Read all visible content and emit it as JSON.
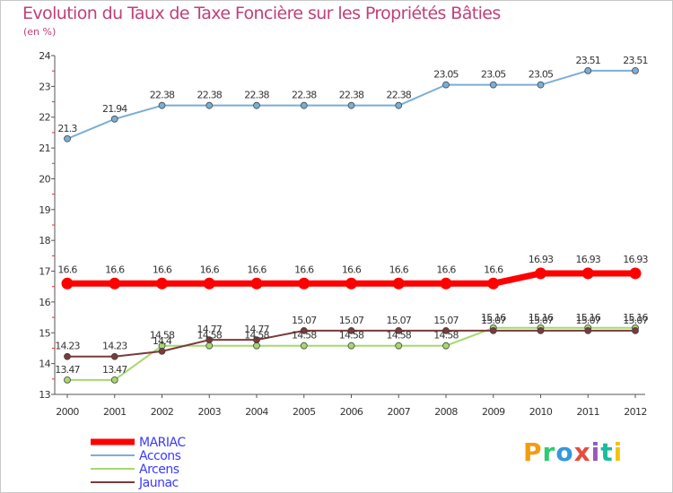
{
  "chart_data": {
    "type": "line",
    "title": "Evolution du Taux de Taxe Foncière sur les Propriétés Bâties",
    "subtitle": "(en %)",
    "xlabel": "",
    "ylabel": "(en %)",
    "ylim": [
      13,
      24
    ],
    "yticks": [
      "13",
      "14",
      "15",
      "16",
      "17",
      "18",
      "19",
      "20",
      "21",
      "22",
      "23",
      "24"
    ],
    "categories": [
      "2000",
      "2001",
      "2002",
      "2003",
      "2004",
      "2005",
      "2006",
      "2007",
      "2008",
      "2009",
      "2010",
      "2011",
      "2012"
    ],
    "grid": false,
    "legend_position": "bottom-left",
    "series": [
      {
        "name": "MARIAC",
        "color": "#ff0000",
        "label_color": "#3a3aff",
        "values": [
          16.6,
          16.6,
          16.6,
          16.6,
          16.6,
          16.6,
          16.6,
          16.6,
          16.6,
          16.6,
          16.93,
          16.93,
          16.93
        ],
        "labels": [
          "16.6",
          "16.6",
          "16.6",
          "16.6",
          "16.6",
          "16.6",
          "16.6",
          "16.6",
          "16.6",
          "16.6",
          "16.93",
          "16.93",
          "16.93"
        ]
      },
      {
        "name": "Accons",
        "color": "#7aaed6",
        "label_color": "#3a3aff",
        "values": [
          21.3,
          21.94,
          22.38,
          22.38,
          22.38,
          22.38,
          22.38,
          22.38,
          23.05,
          23.05,
          23.05,
          23.51,
          23.51
        ],
        "labels": [
          "21.3",
          "21.94",
          "22.38",
          "22.38",
          "22.38",
          "22.38",
          "22.38",
          "22.38",
          "23.05",
          "23.05",
          "23.05",
          "23.51",
          "23.51"
        ]
      },
      {
        "name": "Arcens",
        "color": "#a6d86e",
        "label_color": "#3a3aff",
        "values": [
          13.47,
          13.47,
          14.58,
          14.58,
          14.58,
          14.58,
          14.58,
          14.58,
          14.58,
          15.16,
          15.16,
          15.16,
          15.16
        ],
        "labels": [
          "13.47",
          "13.47",
          "14.58",
          "14.58",
          "14.58",
          "14.58",
          "14.58",
          "14.58",
          "14.58",
          "15.16",
          "15.16",
          "15.16",
          "15.16"
        ]
      },
      {
        "name": "Jaunac",
        "color": "#7a3a3a",
        "label_color": "#3a3aff",
        "values": [
          14.23,
          14.23,
          14.4,
          14.77,
          14.77,
          15.07,
          15.07,
          15.07,
          15.07,
          15.07,
          15.07,
          15.07,
          15.07
        ],
        "labels": [
          "14.23",
          "14.23",
          "14.4",
          "14.77",
          "14.77",
          "15.07",
          "15.07",
          "15.07",
          "15.07",
          "15.07",
          "15.07",
          "15.07",
          "15.07"
        ]
      }
    ]
  },
  "logo": {
    "letters": [
      "P",
      "r",
      "o",
      "x",
      "i",
      "t",
      "i"
    ],
    "colors": [
      "#f39c12",
      "#2ecc71",
      "#3498db",
      "#e74c3c",
      "#9b59b6",
      "#1abc9c",
      "#f1c40f"
    ]
  }
}
